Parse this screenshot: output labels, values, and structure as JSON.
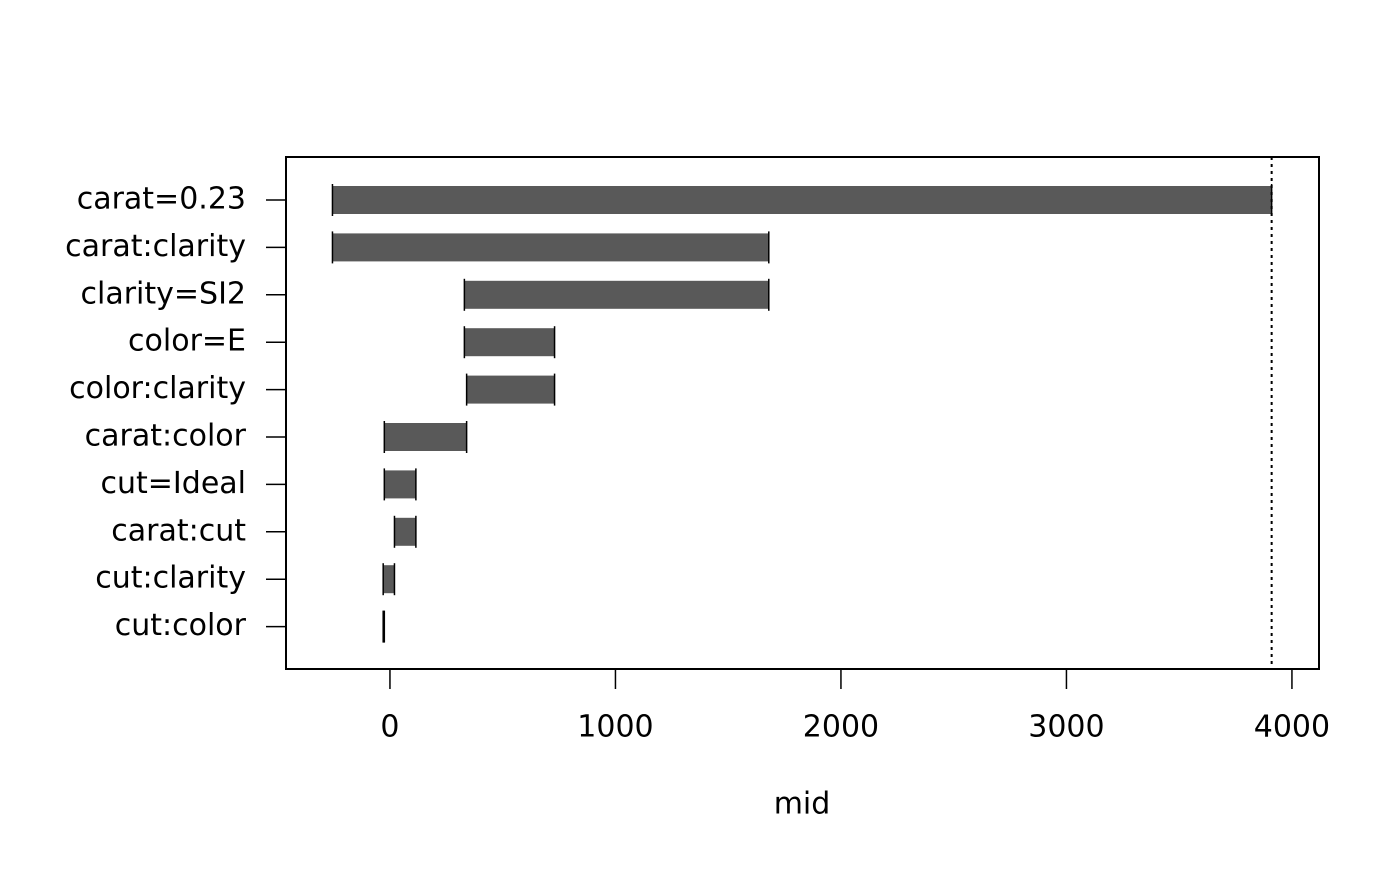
{
  "chart_data": {
    "type": "waterfall",
    "x_label": "mid",
    "baseline": 3910,
    "categories": [
      "carat=0.23",
      "carat:clarity",
      "clarity=SI2",
      "color=E",
      "color:clarity",
      "carat:color",
      "cut=Ideal",
      "carat:cut",
      "cut:clarity",
      "cut:color"
    ],
    "values": [
      -4165,
      1935,
      -1350,
      400,
      -390,
      -365,
      140,
      -95,
      -50,
      5
    ],
    "color": "#595959",
    "xlim": [
      -461,
      4120
    ],
    "xticks": [
      0,
      1000,
      2000,
      3000,
      4000
    ]
  }
}
